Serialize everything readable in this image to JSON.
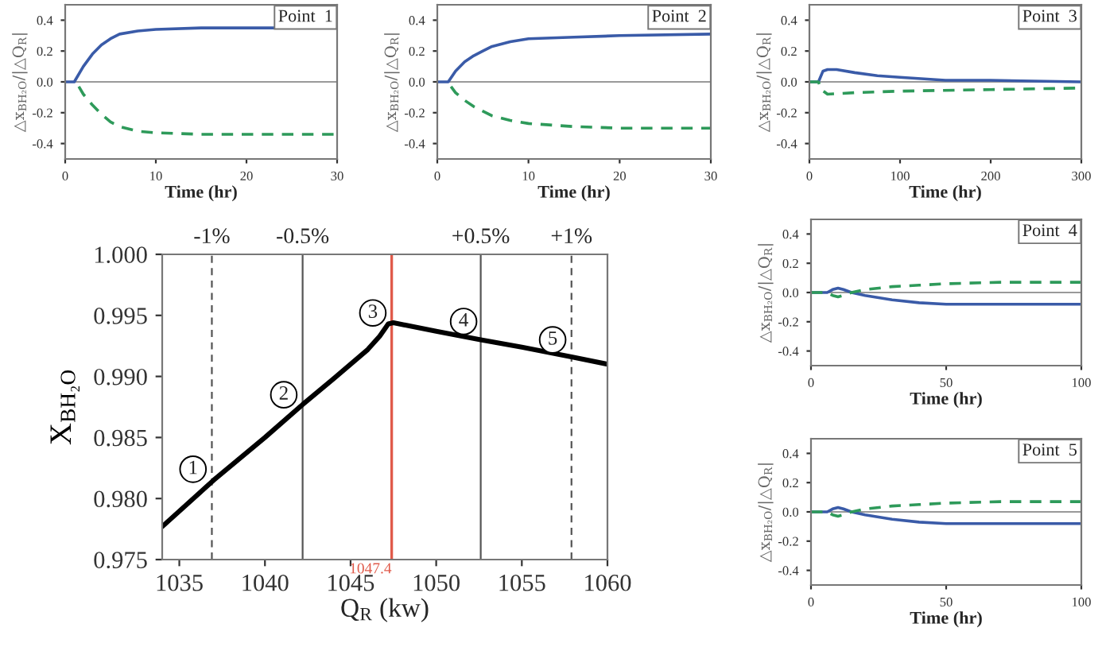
{
  "chart_data": [
    {
      "type": "line",
      "xlabel": "Time (hr)",
      "ylabel": "△x$_{BH₂O}$/|△Q$_{R}$|",
      "annotations": [
        "Point  1"
      ],
      "xlim": [
        0,
        30
      ],
      "xticks": [
        0,
        10,
        20,
        30
      ],
      "ylim": [
        -0.5,
        0.5
      ],
      "yticks": [
        -0.4,
        -0.2,
        {
          "value": 0,
          "label": "0.0"
        },
        0.2,
        0.4
      ],
      "ref_lines": [
        {
          "axis": "y",
          "value": 0,
          "color": "#999999"
        }
      ],
      "series": [
        {
          "color": "#3a5ba8",
          "line_style": "solid",
          "x": [
            0,
            1,
            2,
            3,
            4,
            5,
            6,
            8,
            10,
            15,
            30
          ],
          "values": [
            0,
            0,
            0.1,
            0.18,
            0.24,
            0.28,
            0.31,
            0.33,
            0.34,
            0.35,
            0.35
          ]
        },
        {
          "color": "#2e9a5a",
          "line_style": "dashed",
          "x": [
            1.5,
            2,
            3,
            4,
            5,
            6,
            8,
            10,
            15,
            30
          ],
          "values": [
            -0.03,
            -0.08,
            -0.15,
            -0.21,
            -0.26,
            -0.29,
            -0.32,
            -0.33,
            -0.34,
            -0.34
          ]
        }
      ]
    },
    {
      "type": "line",
      "xlabel": "Time (hr)",
      "ylabel": "△x$_{BH₂O}$/|△Q$_{R}$|",
      "annotations": [
        "Point  2"
      ],
      "xlim": [
        0,
        30
      ],
      "xticks": [
        0,
        10,
        20,
        30
      ],
      "ylim": [
        -0.5,
        0.5
      ],
      "yticks": [
        -0.4,
        -0.2,
        {
          "value": 0,
          "label": "0.0"
        },
        0.2,
        0.4
      ],
      "ref_lines": [
        {
          "axis": "y",
          "value": 0,
          "color": "#999999"
        }
      ],
      "series": [
        {
          "color": "#3a5ba8",
          "line_style": "solid",
          "x": [
            0,
            1.2,
            2,
            3,
            4,
            5,
            6,
            8,
            10,
            15,
            20,
            30
          ],
          "values": [
            0,
            0,
            0.07,
            0.13,
            0.17,
            0.2,
            0.23,
            0.26,
            0.28,
            0.29,
            0.3,
            0.31
          ]
        },
        {
          "color": "#2e9a5a",
          "line_style": "dashed",
          "x": [
            1.5,
            2,
            3,
            4,
            5,
            6,
            8,
            10,
            15,
            20,
            30
          ],
          "values": [
            -0.03,
            -0.07,
            -0.12,
            -0.16,
            -0.19,
            -0.22,
            -0.25,
            -0.27,
            -0.29,
            -0.3,
            -0.3
          ]
        }
      ]
    },
    {
      "type": "line",
      "xlabel": "Time (hr)",
      "ylabel": "△x$_{BH₂O}$/|△Q$_{R}$|",
      "annotations": [
        "Point  3"
      ],
      "xlim": [
        0,
        300
      ],
      "xticks": [
        0,
        100,
        200,
        300
      ],
      "ylim": [
        -0.5,
        0.5
      ],
      "yticks": [
        -0.4,
        -0.2,
        {
          "value": 0,
          "label": "0.0"
        },
        0.2,
        0.4
      ],
      "ref_lines": [
        {
          "axis": "y",
          "value": 0,
          "color": "#999999"
        }
      ],
      "series": [
        {
          "color": "#3a5ba8",
          "line_style": "solid",
          "x": [
            0,
            10,
            15,
            20,
            30,
            50,
            75,
            100,
            150,
            200,
            300
          ],
          "values": [
            0,
            0,
            0.07,
            0.08,
            0.08,
            0.06,
            0.04,
            0.03,
            0.01,
            0.01,
            0
          ]
        },
        {
          "color": "#2e9a5a",
          "line_style": "dashed",
          "x": [
            0,
            10,
            13,
            20,
            50,
            100,
            200,
            300
          ],
          "values": [
            0,
            0,
            -0.05,
            -0.08,
            -0.07,
            -0.06,
            -0.05,
            -0.04
          ]
        }
      ]
    },
    {
      "type": "line",
      "xlabel": "Q$_{R}$ (kw)",
      "ylabel": "X$_{BH₂O}$",
      "xlim": [
        1034,
        1060
      ],
      "xticks": [
        1035,
        1040,
        1045,
        1050,
        1055,
        1060
      ],
      "ylim": [
        0.975,
        1.0
      ],
      "yticks": [
        0.975,
        {
          "value": 0.98,
          "label": "0.980"
        },
        0.985,
        {
          "value": 0.99,
          "label": "0.990"
        },
        0.995,
        {
          "value": 1.0,
          "label": "1.000"
        }
      ],
      "annotations": [
        {
          "text": "-1%",
          "x": 1036.9,
          "y": 1.0
        },
        {
          "text": "-0.5%",
          "x": 1042.2,
          "y": 1.0
        },
        {
          "text": "+0.5%",
          "x": 1052.6,
          "y": 1.0
        },
        {
          "text": "+1%",
          "x": 1057.9,
          "y": 1.0
        },
        {
          "text": "1",
          "x": 1035.8,
          "y": 0.9824
        },
        {
          "text": "2",
          "x": 1041.1,
          "y": 0.9885
        },
        {
          "text": "3",
          "x": 1046.3,
          "y": 0.9952
        },
        {
          "text": "4",
          "x": 1051.6,
          "y": 0.9945
        },
        {
          "text": "5",
          "x": 1056.8,
          "y": 0.993
        }
      ],
      "ref_lines": [
        {
          "axis": "x",
          "value": 1036.9,
          "line_style": "dashed"
        },
        {
          "axis": "x",
          "value": 1042.2,
          "line_style": "solid"
        },
        {
          "axis": "x",
          "value": 1047.4,
          "label": "1047.4",
          "color": "#e05a4a",
          "line_style": "solid"
        },
        {
          "axis": "x",
          "value": 1052.6,
          "line_style": "solid"
        },
        {
          "axis": "x",
          "value": 1057.9,
          "line_style": "dashed"
        }
      ],
      "series": [
        {
          "color": "#000000",
          "line_style": "solid",
          "x": [
            1034,
            1037,
            1040,
            1042.2,
            1044,
            1046,
            1046.7,
            1047.2,
            1047.5,
            1050,
            1052.6,
            1055,
            1057.9,
            1060
          ],
          "values": [
            0.9777,
            0.9815,
            0.985,
            0.9877,
            0.9898,
            0.9922,
            0.9933,
            0.9943,
            0.9944,
            0.9937,
            0.993,
            0.9924,
            0.9916,
            0.991
          ]
        }
      ]
    },
    {
      "type": "line",
      "xlabel": "Time (hr)",
      "ylabel": "△x$_{BH₂O}$/|△Q$_{R}$|",
      "annotations": [
        "Point  4"
      ],
      "xlim": [
        0,
        100
      ],
      "xticks": [
        0,
        50,
        100
      ],
      "ylim": [
        -0.5,
        0.5
      ],
      "yticks": [
        -0.4,
        -0.2,
        {
          "value": 0,
          "label": "0.0"
        },
        0.2,
        0.4
      ],
      "ref_lines": [
        {
          "axis": "y",
          "value": 0,
          "color": "#999999"
        }
      ],
      "series": [
        {
          "color": "#3a5ba8",
          "line_style": "solid",
          "x": [
            0,
            6,
            8,
            10,
            12,
            15,
            20,
            30,
            40,
            50,
            70,
            100
          ],
          "values": [
            0,
            0,
            0.02,
            0.03,
            0.02,
            0,
            -0.02,
            -0.05,
            -0.07,
            -0.08,
            -0.08,
            -0.08
          ]
        },
        {
          "color": "#2e9a5a",
          "line_style": "dashed",
          "x": [
            0,
            6,
            8,
            10,
            12,
            15,
            20,
            30,
            40,
            50,
            70,
            100
          ],
          "values": [
            0,
            0,
            -0.02,
            -0.03,
            -0.02,
            0,
            0.02,
            0.04,
            0.05,
            0.06,
            0.07,
            0.07
          ]
        }
      ]
    },
    {
      "type": "line",
      "xlabel": "Time (hr)",
      "ylabel": "△x$_{BH₂O}$/|△Q$_{R}$|",
      "annotations": [
        "Point  5"
      ],
      "xlim": [
        0,
        100
      ],
      "xticks": [
        0,
        50,
        100
      ],
      "ylim": [
        -0.5,
        0.5
      ],
      "yticks": [
        -0.4,
        -0.2,
        {
          "value": 0,
          "label": "0.0"
        },
        0.2,
        0.4
      ],
      "ref_lines": [
        {
          "axis": "y",
          "value": 0,
          "color": "#999999"
        }
      ],
      "series": [
        {
          "color": "#3a5ba8",
          "line_style": "solid",
          "x": [
            0,
            6,
            8,
            10,
            12,
            15,
            20,
            30,
            40,
            50,
            70,
            100
          ],
          "values": [
            0,
            0,
            0.02,
            0.03,
            0.02,
            0,
            -0.02,
            -0.05,
            -0.07,
            -0.08,
            -0.08,
            -0.08
          ]
        },
        {
          "color": "#2e9a5a",
          "line_style": "dashed",
          "x": [
            0,
            6,
            8,
            10,
            12,
            15,
            20,
            30,
            40,
            50,
            70,
            100
          ],
          "values": [
            0,
            0,
            -0.02,
            -0.03,
            -0.02,
            0,
            0.02,
            0.04,
            0.05,
            0.06,
            0.07,
            0.07
          ]
        }
      ]
    }
  ]
}
